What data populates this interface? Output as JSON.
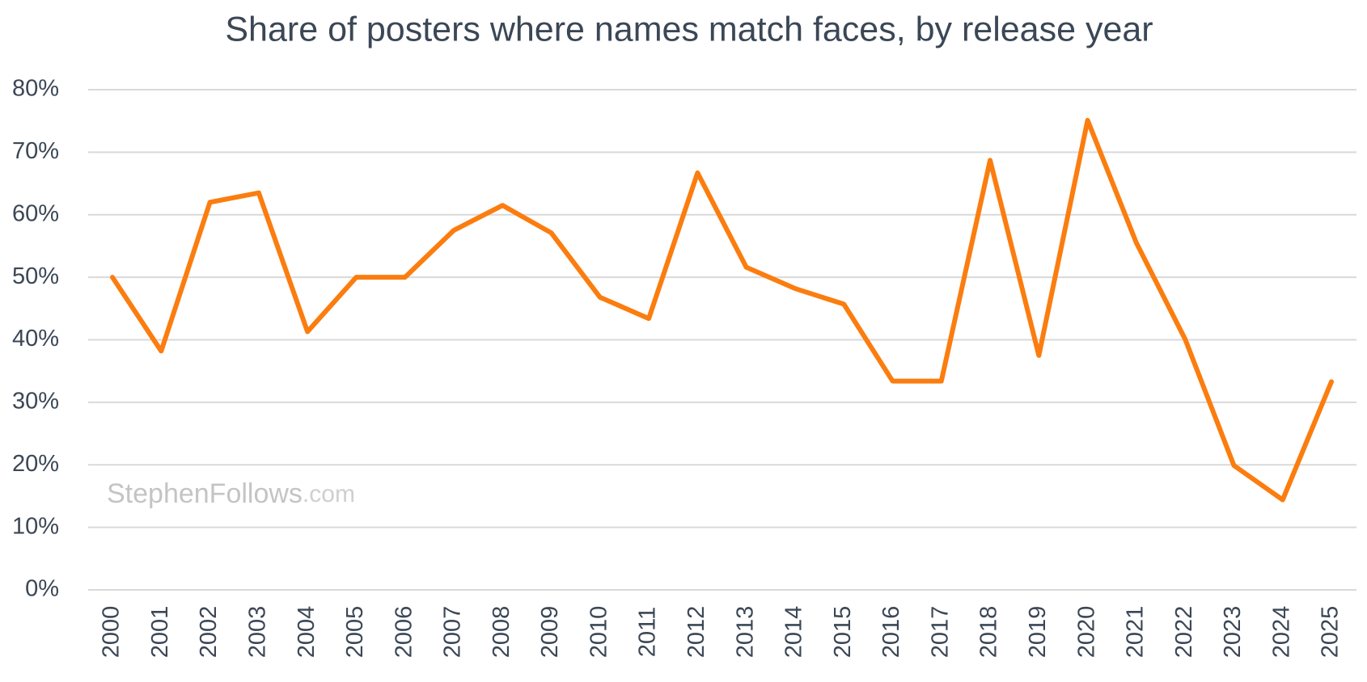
{
  "chart_data": {
    "type": "line",
    "title": "Share of posters where names match faces, by release year",
    "watermark": "StephenFollows",
    "watermark_suffix": ".com",
    "categories": [
      "2000",
      "2001",
      "2002",
      "2003",
      "2004",
      "2005",
      "2006",
      "2007",
      "2008",
      "2009",
      "2010",
      "2011",
      "2012",
      "2013",
      "2014",
      "2015",
      "2016",
      "2017",
      "2018",
      "2019",
      "2020",
      "2021",
      "2022",
      "2023",
      "2024",
      "2025"
    ],
    "series": [
      {
        "color": "#fb7d0f",
        "values": [
          50.0,
          38.2,
          62.0,
          63.5,
          41.3,
          50.0,
          50.0,
          57.5,
          61.5,
          57.1,
          46.8,
          43.4,
          66.7,
          51.6,
          48.2,
          45.7,
          33.4,
          33.4,
          68.7,
          37.5,
          75.1,
          55.5,
          40.1,
          19.9,
          14.4,
          33.3
        ]
      }
    ],
    "ylim": [
      0,
      80
    ],
    "yticks": [
      {
        "value": 0,
        "label": "0%"
      },
      {
        "value": 10,
        "label": "10%"
      },
      {
        "value": 20,
        "label": "20%"
      },
      {
        "value": 30,
        "label": "30%"
      },
      {
        "value": 40,
        "label": "40%"
      },
      {
        "value": 50,
        "label": "50%"
      },
      {
        "value": 60,
        "label": "60%"
      },
      {
        "value": 70,
        "label": "70%"
      },
      {
        "value": 80,
        "label": "80%"
      }
    ],
    "grid": true
  }
}
